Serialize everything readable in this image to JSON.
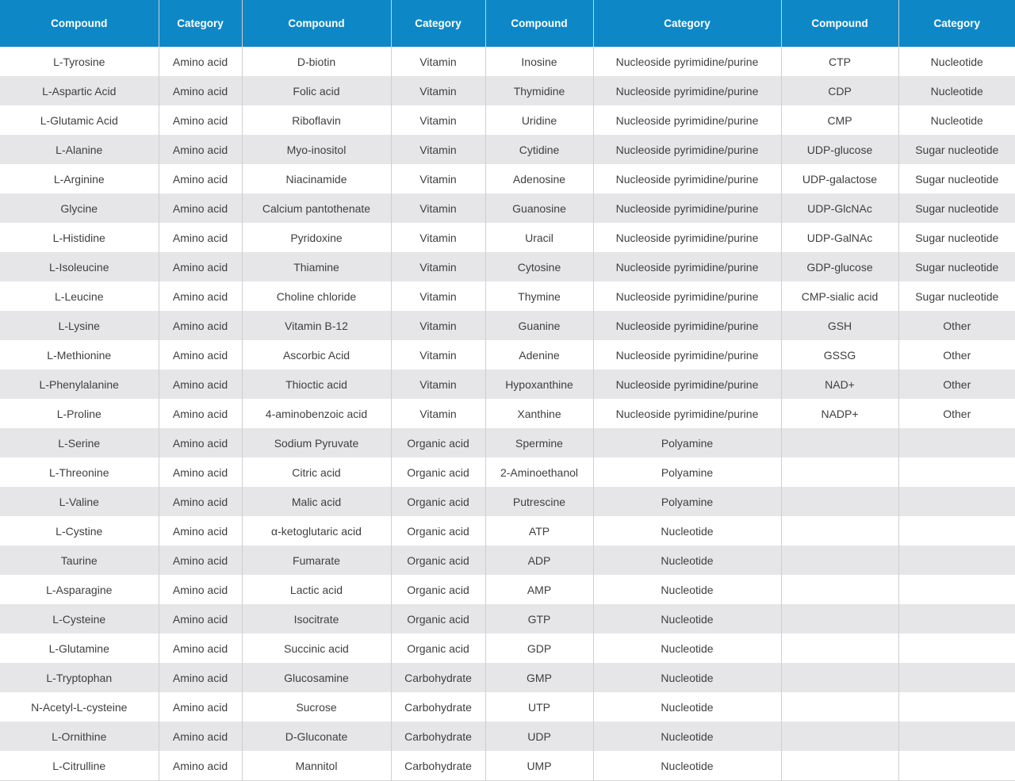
{
  "style": {
    "header_bg": "#0e87c7",
    "header_text": "#ffffff",
    "body_text": "#3f3f41",
    "stripe_row_bg": "#e6e6e8",
    "white_row_bg": "#ffffff",
    "grid_border": "#cfcfd1"
  },
  "chart_data": {
    "type": "table",
    "title": "",
    "columns": [
      "Compound",
      "Category",
      "Compound",
      "Category",
      "Compound",
      "Category",
      "Compound",
      "Category"
    ],
    "rows": [
      [
        "L-Tyrosine",
        "Amino acid",
        "D-biotin",
        "Vitamin",
        "Inosine",
        "Nucleoside pyrimidine/purine",
        "CTP",
        "Nucleotide"
      ],
      [
        "L-Aspartic Acid",
        "Amino acid",
        "Folic acid",
        "Vitamin",
        "Thymidine",
        "Nucleoside pyrimidine/purine",
        "CDP",
        "Nucleotide"
      ],
      [
        "L-Glutamic Acid",
        "Amino acid",
        "Riboflavin",
        "Vitamin",
        "Uridine",
        "Nucleoside pyrimidine/purine",
        "CMP",
        "Nucleotide"
      ],
      [
        "L-Alanine",
        "Amino acid",
        "Myo-inositol",
        "Vitamin",
        "Cytidine",
        "Nucleoside pyrimidine/purine",
        "UDP-glucose",
        "Sugar nucleotide"
      ],
      [
        "L-Arginine",
        "Amino acid",
        "Niacinamide",
        "Vitamin",
        "Adenosine",
        "Nucleoside pyrimidine/purine",
        "UDP-galactose",
        "Sugar nucleotide"
      ],
      [
        "Glycine",
        "Amino acid",
        "Calcium pantothenate",
        "Vitamin",
        "Guanosine",
        "Nucleoside pyrimidine/purine",
        "UDP-GlcNAc",
        "Sugar nucleotide"
      ],
      [
        "L-Histidine",
        "Amino acid",
        "Pyridoxine",
        "Vitamin",
        "Uracil",
        "Nucleoside pyrimidine/purine",
        "UDP-GalNAc",
        "Sugar nucleotide"
      ],
      [
        "L-Isoleucine",
        "Amino acid",
        "Thiamine",
        "Vitamin",
        "Cytosine",
        "Nucleoside pyrimidine/purine",
        "GDP-glucose",
        "Sugar nucleotide"
      ],
      [
        "L-Leucine",
        "Amino acid",
        "Choline chloride",
        "Vitamin",
        "Thymine",
        "Nucleoside pyrimidine/purine",
        "CMP-sialic acid",
        "Sugar nucleotide"
      ],
      [
        "L-Lysine",
        "Amino acid",
        "Vitamin B-12",
        "Vitamin",
        "Guanine",
        "Nucleoside pyrimidine/purine",
        "GSH",
        "Other"
      ],
      [
        "L-Methionine",
        "Amino acid",
        "Ascorbic Acid",
        "Vitamin",
        "Adenine",
        "Nucleoside pyrimidine/purine",
        "GSSG",
        "Other"
      ],
      [
        "L-Phenylalanine",
        "Amino acid",
        "Thioctic acid",
        "Vitamin",
        "Hypoxanthine",
        "Nucleoside pyrimidine/purine",
        "NAD+",
        "Other"
      ],
      [
        "L-Proline",
        "Amino acid",
        "4-aminobenzoic acid",
        "Vitamin",
        "Xanthine",
        "Nucleoside pyrimidine/purine",
        "NADP+",
        "Other"
      ],
      [
        "L-Serine",
        "Amino acid",
        "Sodium Pyruvate",
        "Organic acid",
        "Spermine",
        "Polyamine",
        "",
        ""
      ],
      [
        "L-Threonine",
        "Amino acid",
        "Citric acid",
        "Organic acid",
        "2-Aminoethanol",
        "Polyamine",
        "",
        ""
      ],
      [
        "L-Valine",
        "Amino acid",
        "Malic acid",
        "Organic acid",
        "Putrescine",
        "Polyamine",
        "",
        ""
      ],
      [
        "L-Cystine",
        "Amino acid",
        "α-ketoglutaric acid",
        "Organic acid",
        "ATP",
        "Nucleotide",
        "",
        ""
      ],
      [
        "Taurine",
        "Amino acid",
        "Fumarate",
        "Organic acid",
        "ADP",
        "Nucleotide",
        "",
        ""
      ],
      [
        "L-Asparagine",
        "Amino acid",
        "Lactic acid",
        "Organic acid",
        "AMP",
        "Nucleotide",
        "",
        ""
      ],
      [
        "L-Cysteine",
        "Amino acid",
        "Isocitrate",
        "Organic acid",
        "GTP",
        "Nucleotide",
        "",
        ""
      ],
      [
        "L-Glutamine",
        "Amino acid",
        "Succinic acid",
        "Organic acid",
        "GDP",
        "Nucleotide",
        "",
        ""
      ],
      [
        "L-Tryptophan",
        "Amino acid",
        "Glucosamine",
        "Carbohydrate",
        "GMP",
        "Nucleotide",
        "",
        ""
      ],
      [
        "N-Acetyl-L-cysteine",
        "Amino acid",
        "Sucrose",
        "Carbohydrate",
        "UTP",
        "Nucleotide",
        "",
        ""
      ],
      [
        "L-Ornithine",
        "Amino acid",
        "D-Gluconate",
        "Carbohydrate",
        "UDP",
        "Nucleotide",
        "",
        ""
      ],
      [
        "L-Citrulline",
        "Amino acid",
        "Mannitol",
        "Carbohydrate",
        "UMP",
        "Nucleotide",
        "",
        ""
      ]
    ]
  }
}
